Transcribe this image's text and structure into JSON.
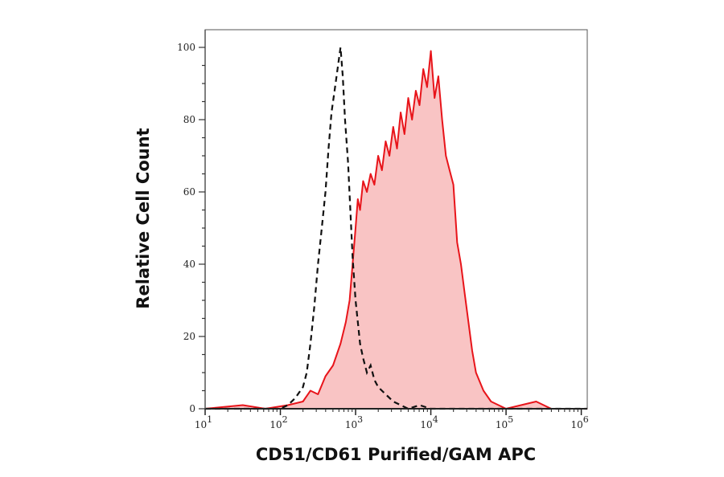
{
  "chart_data": {
    "type": "area",
    "title": "",
    "xlabel": "CD51/CD61 Purified/GAM APC",
    "ylabel": "Relative Cell Count",
    "x_scale": "log",
    "xlim": [
      10,
      1200000
    ],
    "ylim": [
      0,
      105
    ],
    "x_ticks": [
      {
        "exp": "1",
        "v": 1
      },
      {
        "exp": "2",
        "v": 2
      },
      {
        "exp": "3",
        "v": 3
      },
      {
        "exp": "4",
        "v": 4
      },
      {
        "exp": "5",
        "v": 5
      },
      {
        "exp": "6",
        "v": 6
      }
    ],
    "x_tick_base": "10",
    "y_ticks": [
      "0",
      "20",
      "40",
      "60",
      "80",
      "100"
    ],
    "grid": false,
    "series": [
      {
        "style": "filled-red",
        "color": "#e8141a",
        "fill": "#f9c4c4",
        "log10x": [
          1.0,
          1.5,
          1.8,
          2.1,
          2.3,
          2.4,
          2.5,
          2.6,
          2.7,
          2.8,
          2.87,
          2.92,
          2.96,
          3.0,
          3.03,
          3.06,
          3.1,
          3.15,
          3.2,
          3.25,
          3.3,
          3.35,
          3.4,
          3.45,
          3.5,
          3.55,
          3.6,
          3.65,
          3.7,
          3.75,
          3.8,
          3.85,
          3.9,
          3.95,
          4.0,
          4.05,
          4.1,
          4.15,
          4.2,
          4.25,
          4.3,
          4.35,
          4.4,
          4.45,
          4.5,
          4.55,
          4.6,
          4.7,
          4.8,
          5.0,
          5.4,
          5.6,
          6.08
        ],
        "y": [
          0,
          1,
          0,
          1,
          2,
          5,
          4,
          9,
          12,
          18,
          24,
          30,
          40,
          50,
          58,
          55,
          63,
          60,
          65,
          62,
          70,
          66,
          74,
          70,
          78,
          72,
          82,
          76,
          86,
          80,
          88,
          84,
          94,
          89,
          99,
          86,
          92,
          80,
          70,
          66,
          62,
          46,
          40,
          32,
          24,
          16,
          10,
          5,
          2,
          0,
          2,
          0,
          0
        ]
      },
      {
        "style": "dashed-black",
        "color": "#111111",
        "log10x": [
          1.0,
          2.0,
          2.1,
          2.2,
          2.3,
          2.35,
          2.4,
          2.45,
          2.5,
          2.55,
          2.6,
          2.64,
          2.68,
          2.72,
          2.76,
          2.8,
          2.83,
          2.86,
          2.9,
          2.93,
          2.96,
          3.0,
          3.03,
          3.06,
          3.1,
          3.15,
          3.2,
          3.25,
          3.3,
          3.4,
          3.5,
          3.6,
          3.7,
          3.85,
          4.0,
          6.08
        ],
        "y": [
          0,
          0,
          1,
          3,
          6,
          10,
          18,
          28,
          40,
          50,
          60,
          72,
          82,
          88,
          94,
          100,
          92,
          80,
          68,
          55,
          42,
          30,
          24,
          18,
          14,
          10,
          12,
          8,
          6,
          4,
          2,
          1,
          0,
          1,
          0,
          0
        ]
      }
    ]
  }
}
